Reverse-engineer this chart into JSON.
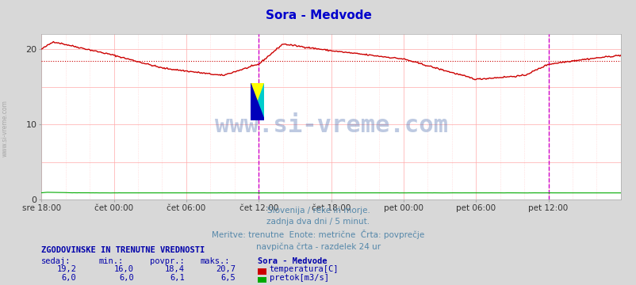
{
  "title": "Sora - Medvode",
  "title_color": "#0000cc",
  "bg_color": "#d8d8d8",
  "plot_bg_color": "#ffffff",
  "x_labels": [
    "sre 18:00",
    "čet 00:00",
    "čet 06:00",
    "čet 12:00",
    "čet 18:00",
    "pet 00:00",
    "pet 06:00",
    "pet 12:00"
  ],
  "x_positions": [
    0,
    72,
    144,
    216,
    288,
    360,
    432,
    504
  ],
  "y_ticks": [
    0,
    10,
    20
  ],
  "ylim": [
    0,
    22
  ],
  "temp_avg": 18.4,
  "temp_color": "#cc0000",
  "flow_color": "#00aa00",
  "vline_color": "#cc00cc",
  "watermark_text": "www.si-vreme.com",
  "watermark_color": "#4466aa",
  "watermark_alpha": 0.35,
  "footer_lines": [
    "Slovenija / reke in morje.",
    "zadnja dva dni / 5 minut.",
    "Meritve: trenutne  Enote: metrične  Črta: povprečje",
    "navpična črta - razdelek 24 ur"
  ],
  "footer_color": "#5588aa",
  "stats_header": "ZGODOVINSKE IN TRENUTNE VREDNOSTI",
  "stats_cols": [
    "sedaj:",
    "min.:",
    "povpr.:",
    "maks.:"
  ],
  "stats_col_vals_temp": [
    "19,2",
    "16,0",
    "18,4",
    "20,7"
  ],
  "stats_col_vals_flow": [
    "6,0",
    "6,0",
    "6,1",
    "6,5"
  ],
  "stats_color": "#0000aa",
  "legend_label_temp": "temperatura[C]",
  "legend_label_flow": "pretok[m3/s]",
  "legend_station": "Sora - Medvode",
  "n_points": 577,
  "temp_key_t": [
    0,
    12,
    72,
    120,
    180,
    216,
    240,
    288,
    360,
    432,
    480,
    504,
    530,
    576
  ],
  "temp_key_v": [
    20.0,
    21.0,
    19.2,
    17.5,
    16.5,
    18.0,
    20.7,
    19.8,
    18.7,
    16.0,
    16.5,
    18.0,
    18.5,
    19.2
  ],
  "flow_key_t": [
    0,
    5,
    15,
    30,
    60,
    576
  ],
  "flow_key_v": [
    6.1,
    6.5,
    6.5,
    6.1,
    6.0,
    6.0
  ],
  "flow_scale_num": 22.0,
  "flow_scale_den": 150.0
}
